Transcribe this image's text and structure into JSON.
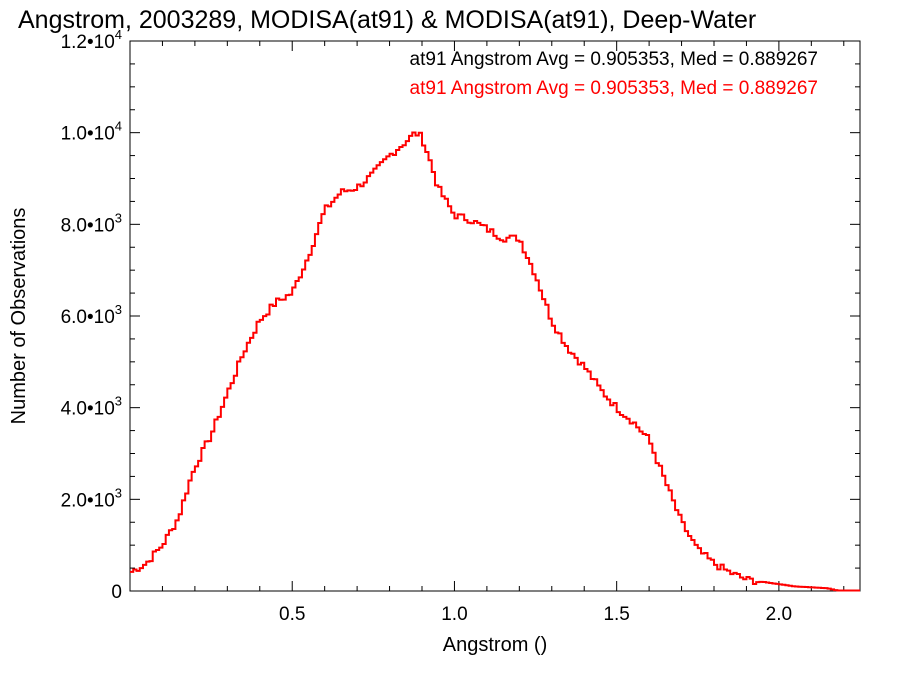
{
  "chart_data": {
    "type": "line",
    "title": "Angstrom, 2003289, MODISA(at91) & MODISA(at91), Deep-Water",
    "xlabel": "Angstrom ()",
    "ylabel": "Number of Observations",
    "xlim": [
      0.0,
      2.25
    ],
    "ylim": [
      0,
      12000
    ],
    "x_ticks": [
      {
        "value": 0.5,
        "label": "0.5"
      },
      {
        "value": 1.0,
        "label": "1.0"
      },
      {
        "value": 1.5,
        "label": "1.5"
      },
      {
        "value": 2.0,
        "label": "2.0"
      }
    ],
    "y_ticks": [
      {
        "value": 0,
        "mantissa": "0",
        "exp": ""
      },
      {
        "value": 2000,
        "mantissa": "2.0•10",
        "exp": "3"
      },
      {
        "value": 4000,
        "mantissa": "4.0•10",
        "exp": "3"
      },
      {
        "value": 6000,
        "mantissa": "6.0•10",
        "exp": "3"
      },
      {
        "value": 8000,
        "mantissa": "8.0•10",
        "exp": "3"
      },
      {
        "value": 10000,
        "mantissa": "1.0•10",
        "exp": "4"
      },
      {
        "value": 12000,
        "mantissa": "1.2•10",
        "exp": "4"
      }
    ],
    "legend": [
      {
        "text": "at91 Angstrom Avg = 0.905353, Med = 0.889267",
        "color": "#000000"
      },
      {
        "text": "at91 Angstrom Avg = 0.905353, Med = 0.889267",
        "color": "#ff0000"
      }
    ],
    "legend_position": "top-right",
    "series": [
      {
        "color": "#ff0000",
        "step": true,
        "x": [
          0.0,
          0.05,
          0.1,
          0.15,
          0.18,
          0.2,
          0.25,
          0.3,
          0.35,
          0.4,
          0.45,
          0.5,
          0.55,
          0.6,
          0.65,
          0.7,
          0.75,
          0.8,
          0.85,
          0.88,
          0.9,
          0.92,
          0.95,
          1.0,
          1.05,
          1.1,
          1.15,
          1.2,
          1.25,
          1.3,
          1.35,
          1.4,
          1.45,
          1.5,
          1.55,
          1.6,
          1.65,
          1.7,
          1.75,
          1.8,
          1.85,
          1.9,
          1.95,
          2.0,
          2.05,
          2.1,
          2.15,
          2.18,
          2.25
        ],
        "y": [
          400,
          600,
          1000,
          1600,
          2300,
          2700,
          3400,
          4300,
          5200,
          5900,
          6300,
          6500,
          7300,
          8300,
          8700,
          8800,
          9100,
          9500,
          9800,
          10000,
          9900,
          9500,
          8800,
          8200,
          8100,
          7900,
          7700,
          7700,
          6900,
          5900,
          5300,
          4900,
          4400,
          4000,
          3700,
          3300,
          2400,
          1500,
          900,
          600,
          400,
          250,
          200,
          150,
          100,
          80,
          60,
          10,
          10
        ]
      }
    ]
  }
}
